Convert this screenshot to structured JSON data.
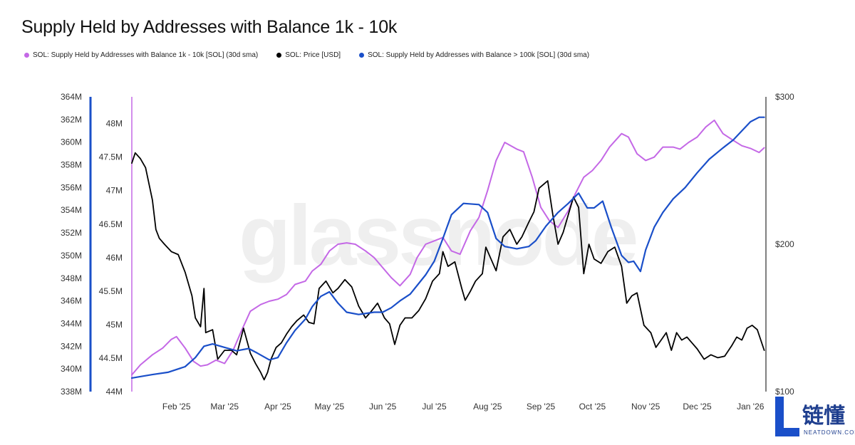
{
  "title": "Supply Held by Addresses with Balance 1k - 10k",
  "legend": [
    {
      "label": "SOL: Supply Held by Addresses with Balance 1k - 10k [SOL] (30d sma)",
      "color": "#c468e6"
    },
    {
      "label": "SOL: Price [USD]",
      "color": "#000000"
    },
    {
      "label": "SOL: Supply Held by Addresses with Balance > 100k [SOL] (30d sma)",
      "color": "#1a4fc9"
    }
  ],
  "watermark": "glassnode",
  "logo": {
    "cn": "链懂",
    "en": "NEATDOWN.COM"
  },
  "chart_data": {
    "type": "line",
    "title": "Supply Held by Addresses with Balance 1k - 10k",
    "x_ticks": [
      "Feb '25",
      "Mar '25",
      "Apr '25",
      "May '25",
      "Jun '25",
      "Jul '25",
      "Aug '25",
      "Sep '25",
      "Oct '25",
      "Nov '25",
      "Dec '25",
      "Jan '26"
    ],
    "x_range": [
      "2025-01-20",
      "2026-01-24"
    ],
    "axes": {
      "left_outer": {
        "range": [
          338,
          364
        ],
        "ticks": [
          "338M",
          "340M",
          "342M",
          "344M",
          "346M",
          "348M",
          "350M",
          "352M",
          "354M",
          "356M",
          "358M",
          "360M",
          "362M",
          "364M"
        ],
        "color": "#1a4fc9"
      },
      "left_inner": {
        "range": [
          44,
          48.4
        ],
        "ticks": [
          "44M",
          "44.5M",
          "45M",
          "45.5M",
          "46M",
          "46.5M",
          "47M",
          "47.5M",
          "48M"
        ],
        "color": "#c468e6"
      },
      "right": {
        "range": [
          100,
          300
        ],
        "ticks": [
          "$100",
          "$200",
          "$300"
        ],
        "color": "#000000"
      }
    },
    "grid": false,
    "legend_position": "top-left",
    "series": [
      {
        "name": "SOL: Supply Held by Addresses with Balance 1k - 10k [SOL] (30d sma)",
        "axis": "left_inner",
        "color": "#c468e6",
        "points": [
          [
            "2025-01-20",
            44.25
          ],
          [
            "2025-01-25",
            44.4
          ],
          [
            "2025-02-01",
            44.55
          ],
          [
            "2025-02-07",
            44.65
          ],
          [
            "2025-02-12",
            44.78
          ],
          [
            "2025-02-15",
            44.82
          ],
          [
            "2025-02-20",
            44.65
          ],
          [
            "2025-02-25",
            44.45
          ],
          [
            "2025-03-01",
            44.38
          ],
          [
            "2025-03-05",
            44.4
          ],
          [
            "2025-03-10",
            44.47
          ],
          [
            "2025-03-15",
            44.42
          ],
          [
            "2025-03-20",
            44.62
          ],
          [
            "2025-03-25",
            44.92
          ],
          [
            "2025-03-30",
            45.2
          ],
          [
            "2025-04-05",
            45.3
          ],
          [
            "2025-04-10",
            45.35
          ],
          [
            "2025-04-15",
            45.38
          ],
          [
            "2025-04-20",
            45.45
          ],
          [
            "2025-04-25",
            45.6
          ],
          [
            "2025-05-01",
            45.65
          ],
          [
            "2025-05-05",
            45.8
          ],
          [
            "2025-05-10",
            45.9
          ],
          [
            "2025-05-15",
            46.1
          ],
          [
            "2025-05-20",
            46.2
          ],
          [
            "2025-05-25",
            46.22
          ],
          [
            "2025-05-30",
            46.2
          ],
          [
            "2025-06-05",
            46.1
          ],
          [
            "2025-06-10",
            46.0
          ],
          [
            "2025-06-15",
            45.85
          ],
          [
            "2025-06-20",
            45.7
          ],
          [
            "2025-06-25",
            45.58
          ],
          [
            "2025-07-01",
            45.75
          ],
          [
            "2025-07-05",
            46.0
          ],
          [
            "2025-07-10",
            46.2
          ],
          [
            "2025-07-15",
            46.25
          ],
          [
            "2025-07-20",
            46.3
          ],
          [
            "2025-07-25",
            46.1
          ],
          [
            "2025-07-30",
            46.05
          ],
          [
            "2025-08-05",
            46.4
          ],
          [
            "2025-08-10",
            46.6
          ],
          [
            "2025-08-15",
            47.0
          ],
          [
            "2025-08-20",
            47.45
          ],
          [
            "2025-08-25",
            47.72
          ],
          [
            "2025-09-01",
            47.62
          ],
          [
            "2025-09-05",
            47.58
          ],
          [
            "2025-09-10",
            47.2
          ],
          [
            "2025-09-15",
            46.75
          ],
          [
            "2025-09-20",
            46.55
          ],
          [
            "2025-09-25",
            46.45
          ],
          [
            "2025-10-01",
            46.7
          ],
          [
            "2025-10-05",
            46.95
          ],
          [
            "2025-10-10",
            47.2
          ],
          [
            "2025-10-15",
            47.3
          ],
          [
            "2025-10-20",
            47.45
          ],
          [
            "2025-10-25",
            47.65
          ],
          [
            "2025-11-01",
            47.85
          ],
          [
            "2025-11-05",
            47.8
          ],
          [
            "2025-11-10",
            47.55
          ],
          [
            "2025-11-15",
            47.45
          ],
          [
            "2025-11-20",
            47.5
          ],
          [
            "2025-11-25",
            47.65
          ],
          [
            "2025-12-01",
            47.65
          ],
          [
            "2025-12-05",
            47.62
          ],
          [
            "2025-12-10",
            47.72
          ],
          [
            "2025-12-15",
            47.8
          ],
          [
            "2025-12-20",
            47.95
          ],
          [
            "2025-12-25",
            48.05
          ],
          [
            "2025-12-30",
            47.85
          ],
          [
            "2026-01-05",
            47.75
          ],
          [
            "2026-01-10",
            47.67
          ],
          [
            "2026-01-15",
            47.63
          ],
          [
            "2026-01-20",
            47.57
          ],
          [
            "2026-01-23",
            47.64
          ]
        ]
      },
      {
        "name": "SOL: Price [USD]",
        "axis": "right",
        "color": "#000000",
        "points": [
          [
            "2025-01-20",
            255
          ],
          [
            "2025-01-22",
            262
          ],
          [
            "2025-01-25",
            258
          ],
          [
            "2025-01-28",
            252
          ],
          [
            "2025-02-01",
            230
          ],
          [
            "2025-02-03",
            210
          ],
          [
            "2025-02-05",
            204
          ],
          [
            "2025-02-08",
            200
          ],
          [
            "2025-02-12",
            195
          ],
          [
            "2025-02-16",
            193
          ],
          [
            "2025-02-20",
            181
          ],
          [
            "2025-02-24",
            165
          ],
          [
            "2025-02-26",
            150
          ],
          [
            "2025-03-01",
            144
          ],
          [
            "2025-03-03",
            170
          ],
          [
            "2025-03-04",
            140
          ],
          [
            "2025-03-08",
            142
          ],
          [
            "2025-03-11",
            122
          ],
          [
            "2025-03-15",
            128
          ],
          [
            "2025-03-19",
            128
          ],
          [
            "2025-03-22",
            125
          ],
          [
            "2025-03-26",
            143
          ],
          [
            "2025-03-30",
            126
          ],
          [
            "2025-04-02",
            119
          ],
          [
            "2025-04-05",
            113
          ],
          [
            "2025-04-07",
            108
          ],
          [
            "2025-04-09",
            113
          ],
          [
            "2025-04-11",
            122
          ],
          [
            "2025-04-14",
            130
          ],
          [
            "2025-04-17",
            133
          ],
          [
            "2025-04-20",
            139
          ],
          [
            "2025-04-23",
            144
          ],
          [
            "2025-04-26",
            148
          ],
          [
            "2025-04-30",
            152
          ],
          [
            "2025-05-03",
            147
          ],
          [
            "2025-05-06",
            146
          ],
          [
            "2025-05-09",
            170
          ],
          [
            "2025-05-13",
            175
          ],
          [
            "2025-05-17",
            167
          ],
          [
            "2025-05-20",
            170
          ],
          [
            "2025-05-24",
            176
          ],
          [
            "2025-05-28",
            171
          ],
          [
            "2025-06-01",
            158
          ],
          [
            "2025-06-05",
            150
          ],
          [
            "2025-06-08",
            154
          ],
          [
            "2025-06-12",
            160
          ],
          [
            "2025-06-16",
            150
          ],
          [
            "2025-06-19",
            146
          ],
          [
            "2025-06-22",
            132
          ],
          [
            "2025-06-25",
            145
          ],
          [
            "2025-06-28",
            150
          ],
          [
            "2025-07-02",
            150
          ],
          [
            "2025-07-06",
            155
          ],
          [
            "2025-07-10",
            163
          ],
          [
            "2025-07-14",
            175
          ],
          [
            "2025-07-18",
            180
          ],
          [
            "2025-07-20",
            195
          ],
          [
            "2025-07-23",
            185
          ],
          [
            "2025-07-27",
            188
          ],
          [
            "2025-07-31",
            170
          ],
          [
            "2025-08-02",
            162
          ],
          [
            "2025-08-05",
            168
          ],
          [
            "2025-08-08",
            175
          ],
          [
            "2025-08-12",
            180
          ],
          [
            "2025-08-14",
            198
          ],
          [
            "2025-08-17",
            190
          ],
          [
            "2025-08-20",
            182
          ],
          [
            "2025-08-24",
            205
          ],
          [
            "2025-08-28",
            210
          ],
          [
            "2025-09-01",
            200
          ],
          [
            "2025-09-04",
            205
          ],
          [
            "2025-09-08",
            215
          ],
          [
            "2025-09-11",
            222
          ],
          [
            "2025-09-14",
            238
          ],
          [
            "2025-09-16",
            240
          ],
          [
            "2025-09-19",
            243
          ],
          [
            "2025-09-22",
            220
          ],
          [
            "2025-09-25",
            200
          ],
          [
            "2025-09-28",
            208
          ],
          [
            "2025-10-01",
            220
          ],
          [
            "2025-10-04",
            232
          ],
          [
            "2025-10-07",
            225
          ],
          [
            "2025-10-10",
            180
          ],
          [
            "2025-10-13",
            200
          ],
          [
            "2025-10-16",
            190
          ],
          [
            "2025-10-20",
            187
          ],
          [
            "2025-10-24",
            195
          ],
          [
            "2025-10-28",
            198
          ],
          [
            "2025-11-01",
            185
          ],
          [
            "2025-11-04",
            160
          ],
          [
            "2025-11-07",
            165
          ],
          [
            "2025-11-10",
            167
          ],
          [
            "2025-11-14",
            145
          ],
          [
            "2025-11-18",
            140
          ],
          [
            "2025-11-21",
            130
          ],
          [
            "2025-11-24",
            135
          ],
          [
            "2025-11-27",
            140
          ],
          [
            "2025-11-30",
            128
          ],
          [
            "2025-12-03",
            140
          ],
          [
            "2025-12-06",
            135
          ],
          [
            "2025-12-09",
            137
          ],
          [
            "2025-12-12",
            133
          ],
          [
            "2025-12-15",
            129
          ],
          [
            "2025-12-19",
            122
          ],
          [
            "2025-12-23",
            125
          ],
          [
            "2025-12-27",
            123
          ],
          [
            "2025-12-31",
            124
          ],
          [
            "2026-01-04",
            131
          ],
          [
            "2026-01-07",
            137
          ],
          [
            "2026-01-10",
            135
          ],
          [
            "2026-01-13",
            143
          ],
          [
            "2026-01-16",
            145
          ],
          [
            "2026-01-19",
            142
          ],
          [
            "2026-01-23",
            128
          ]
        ]
      },
      {
        "name": "SOL: Supply Held by Addresses with Balance > 100k [SOL] (30d sma)",
        "axis": "left_outer",
        "color": "#1a4fc9",
        "points": [
          [
            "2025-01-20",
            339.2
          ],
          [
            "2025-02-01",
            339.5
          ],
          [
            "2025-02-10",
            339.7
          ],
          [
            "2025-02-20",
            340.2
          ],
          [
            "2025-02-26",
            341.0
          ],
          [
            "2025-03-03",
            342.0
          ],
          [
            "2025-03-08",
            342.2
          ],
          [
            "2025-03-15",
            341.9
          ],
          [
            "2025-03-22",
            341.6
          ],
          [
            "2025-03-29",
            341.8
          ],
          [
            "2025-04-03",
            341.4
          ],
          [
            "2025-04-10",
            340.8
          ],
          [
            "2025-04-15",
            341.0
          ],
          [
            "2025-04-20",
            342.3
          ],
          [
            "2025-04-25",
            343.4
          ],
          [
            "2025-05-01",
            344.4
          ],
          [
            "2025-05-05",
            345.5
          ],
          [
            "2025-05-10",
            346.4
          ],
          [
            "2025-05-15",
            346.8
          ],
          [
            "2025-05-20",
            345.8
          ],
          [
            "2025-05-25",
            345.0
          ],
          [
            "2025-06-01",
            344.8
          ],
          [
            "2025-06-10",
            345.0
          ],
          [
            "2025-06-15",
            345.0
          ],
          [
            "2025-06-20",
            345.4
          ],
          [
            "2025-06-25",
            346.0
          ],
          [
            "2025-07-01",
            346.6
          ],
          [
            "2025-07-10",
            348.3
          ],
          [
            "2025-07-15",
            349.5
          ],
          [
            "2025-07-20",
            351.5
          ],
          [
            "2025-07-25",
            353.6
          ],
          [
            "2025-08-01",
            354.6
          ],
          [
            "2025-08-10",
            354.5
          ],
          [
            "2025-08-15",
            353.8
          ],
          [
            "2025-08-20",
            351.5
          ],
          [
            "2025-08-25",
            350.8
          ],
          [
            "2025-09-01",
            350.6
          ],
          [
            "2025-09-08",
            350.8
          ],
          [
            "2025-09-12",
            351.3
          ],
          [
            "2025-09-18",
            352.6
          ],
          [
            "2025-09-25",
            353.8
          ],
          [
            "2025-10-01",
            354.6
          ],
          [
            "2025-10-07",
            355.5
          ],
          [
            "2025-10-12",
            354.2
          ],
          [
            "2025-10-16",
            354.2
          ],
          [
            "2025-10-21",
            354.8
          ],
          [
            "2025-10-26",
            352.5
          ],
          [
            "2025-11-01",
            350.0
          ],
          [
            "2025-11-05",
            349.4
          ],
          [
            "2025-11-08",
            349.5
          ],
          [
            "2025-11-12",
            348.6
          ],
          [
            "2025-11-15",
            350.5
          ],
          [
            "2025-11-20",
            352.5
          ],
          [
            "2025-11-25",
            353.8
          ],
          [
            "2025-12-01",
            355.0
          ],
          [
            "2025-12-08",
            356.0
          ],
          [
            "2025-12-15",
            357.3
          ],
          [
            "2025-12-22",
            358.5
          ],
          [
            "2025-12-30",
            359.5
          ],
          [
            "2026-01-05",
            360.2
          ],
          [
            "2026-01-10",
            361.0
          ],
          [
            "2026-01-15",
            361.8
          ],
          [
            "2026-01-20",
            362.2
          ],
          [
            "2026-01-23",
            362.2
          ]
        ]
      }
    ]
  }
}
